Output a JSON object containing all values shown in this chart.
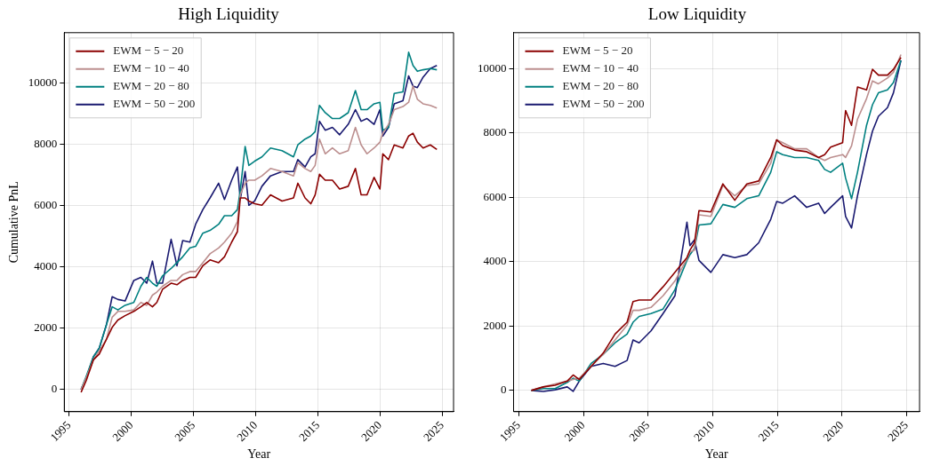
{
  "chart_data": [
    {
      "type": "line",
      "title": "High Liquidity",
      "xlabel": "Year",
      "ylabel": "Cumulative PnL",
      "x": [
        1995.95,
        1996.37,
        1996.94,
        1997.41,
        1997.99,
        1998.45,
        1998.91,
        1999.49,
        2000.19,
        2000.76,
        2001.23,
        2001.69,
        2002.04,
        2002.5,
        2003.19,
        2003.66,
        2004.12,
        2004.7,
        2005.16,
        2005.74,
        2006.32,
        2007.01,
        2007.48,
        2008.06,
        2008.52,
        2008.75,
        2009.14,
        2009.44,
        2009.91,
        2010.49,
        2011.18,
        2012.11,
        2013.03,
        2013.38,
        2013.96,
        2014.42,
        2014.77,
        2015.12,
        2015.58,
        2016.16,
        2016.74,
        2017.43,
        2018.01,
        2018.47,
        2018.94,
        2019.51,
        2019.98,
        2020.21,
        2020.67,
        2021.13,
        2021.83,
        2022.29,
        2022.64,
        2022.99,
        2023.45,
        2024.03,
        2024.56
      ],
      "series": [
        {
          "name": "EWM − 5 − 20",
          "color": "#8b0000",
          "values": [
            -90,
            300,
            970,
            1160,
            1640,
            2030,
            2270,
            2410,
            2550,
            2700,
            2840,
            2700,
            2840,
            3270,
            3470,
            3420,
            3560,
            3660,
            3660,
            4040,
            4230,
            4140,
            4330,
            4810,
            5150,
            6250,
            6250,
            6150,
            6060,
            6010,
            6350,
            6150,
            6250,
            6730,
            6250,
            6060,
            6350,
            7020,
            6830,
            6830,
            6540,
            6630,
            7210,
            6350,
            6350,
            6920,
            6540,
            7690,
            7500,
            7980,
            7880,
            8270,
            8360,
            8070,
            7880,
            7980,
            7830
          ]
        },
        {
          "name": "EWM − 10 − 40",
          "color": "#bc8f8f",
          "values": [
            0,
            390,
            970,
            1260,
            1640,
            2360,
            2550,
            2550,
            2600,
            2840,
            2750,
            3080,
            3180,
            3370,
            3560,
            3560,
            3750,
            3850,
            3850,
            4140,
            4430,
            4620,
            4810,
            5100,
            5480,
            6350,
            6730,
            6830,
            6830,
            6970,
            7210,
            7110,
            6970,
            7400,
            7210,
            7110,
            7310,
            8170,
            7690,
            7880,
            7690,
            7790,
            8550,
            7980,
            7690,
            7880,
            8070,
            8360,
            8650,
            9130,
            9230,
            9370,
            9900,
            9470,
            9320,
            9270,
            9180
          ]
        },
        {
          "name": "EWM − 20 − 80",
          "color": "#008080",
          "values": [
            0,
            440,
            1070,
            1350,
            2120,
            2700,
            2600,
            2750,
            2840,
            3370,
            3660,
            3470,
            3370,
            3710,
            3950,
            4140,
            4330,
            4620,
            4670,
            5100,
            5190,
            5390,
            5670,
            5670,
            5870,
            6490,
            7930,
            7310,
            7450,
            7590,
            7880,
            7790,
            7590,
            7980,
            8170,
            8270,
            8410,
            9270,
            9030,
            8840,
            8840,
            9030,
            9750,
            9130,
            9130,
            9320,
            9370,
            8460,
            8550,
            9660,
            9710,
            11000,
            10570,
            10380,
            10430,
            10470,
            10430
          ]
        },
        {
          "name": "EWM − 50 − 200",
          "color": "#191970",
          "values": [
            0,
            390,
            1070,
            1350,
            2120,
            3030,
            2940,
            2890,
            3560,
            3660,
            3470,
            4190,
            3470,
            3470,
            4900,
            4040,
            4860,
            4810,
            5390,
            5870,
            6250,
            6730,
            6200,
            6830,
            7260,
            6200,
            7110,
            6010,
            6150,
            6630,
            6970,
            7110,
            7110,
            7500,
            7260,
            7590,
            7690,
            8750,
            8460,
            8550,
            8310,
            8650,
            9130,
            8750,
            8840,
            8650,
            9130,
            8270,
            8550,
            9320,
            9420,
            10230,
            9900,
            9850,
            10190,
            10470,
            10570
          ]
        }
      ],
      "xlim": [
        1994.6,
        2025.9
      ],
      "xticks": [
        1995,
        2000,
        2005,
        2010,
        2015,
        2020,
        2025
      ],
      "ylim": [
        -720,
        11640
      ],
      "yticks": [
        0,
        2000,
        4000,
        6000,
        8000,
        10000
      ],
      "grid": true,
      "legend": "top left"
    },
    {
      "type": "line",
      "title": "Low Liquidity",
      "xlabel": "Year",
      "x": [
        1995.97,
        1996.9,
        1997.82,
        1998.75,
        1999.21,
        1999.68,
        2000.6,
        2001.53,
        2002.45,
        2003.38,
        2003.84,
        2004.31,
        2005.23,
        2006.16,
        2007.08,
        2008.01,
        2008.24,
        2008.59,
        2008.94,
        2009.86,
        2010.79,
        2011.71,
        2012.64,
        2013.56,
        2014.49,
        2014.95,
        2015.42,
        2016.34,
        2017.27,
        2018.19,
        2018.66,
        2019.12,
        2020.05,
        2020.28,
        2020.74,
        2021.2,
        2021.9,
        2022.36,
        2022.82,
        2023.52,
        2023.98,
        2024.56
      ],
      "series": [
        {
          "name": "EWM − 5 − 20",
          "color": "#8b0000",
          "values": [
            0,
            110,
            160,
            290,
            480,
            340,
            750,
            1160,
            1750,
            2120,
            2760,
            2810,
            2810,
            3220,
            3670,
            4130,
            4360,
            4590,
            5590,
            5550,
            6420,
            5910,
            6420,
            6510,
            7240,
            7790,
            7610,
            7470,
            7420,
            7240,
            7330,
            7560,
            7700,
            8700,
            8240,
            9430,
            9340,
            9980,
            9800,
            9800,
            9980,
            10350
          ]
        },
        {
          "name": "EWM − 10 − 40",
          "color": "#bc8f8f",
          "values": [
            0,
            110,
            200,
            290,
            340,
            380,
            750,
            1120,
            1570,
            2030,
            2490,
            2490,
            2580,
            2940,
            3400,
            4090,
            4310,
            4360,
            5460,
            5410,
            6370,
            6050,
            6370,
            6420,
            7060,
            7790,
            7700,
            7510,
            7510,
            7240,
            7150,
            7240,
            7330,
            7240,
            7600,
            8430,
            9070,
            9620,
            9530,
            9710,
            9890,
            10440
          ]
        },
        {
          "name": "EWM − 20 − 80",
          "color": "#008080",
          "values": [
            0,
            60,
            60,
            250,
            380,
            290,
            840,
            1120,
            1480,
            1750,
            2120,
            2300,
            2390,
            2530,
            3130,
            4040,
            4220,
            4410,
            5140,
            5180,
            5780,
            5690,
            5960,
            6050,
            6780,
            7420,
            7330,
            7240,
            7240,
            7150,
            6870,
            6780,
            7060,
            6600,
            5960,
            6780,
            8240,
            8880,
            9250,
            9340,
            9570,
            10260
          ]
        },
        {
          "name": "EWM − 50 − 200",
          "color": "#191970",
          "values": [
            0,
            -30,
            20,
            110,
            -30,
            290,
            750,
            840,
            750,
            930,
            1570,
            1480,
            1850,
            2390,
            2940,
            5230,
            4500,
            4680,
            4040,
            3670,
            4220,
            4130,
            4220,
            4590,
            5320,
            5870,
            5820,
            6050,
            5690,
            5820,
            5500,
            5690,
            6050,
            5410,
            5050,
            6050,
            7330,
            8060,
            8520,
            8790,
            9250,
            10260
          ]
        }
      ],
      "xlim": [
        1994.6,
        2026.0
      ],
      "xticks": [
        1995,
        2000,
        2005,
        2010,
        2015,
        2020,
        2025
      ],
      "ylim": [
        -660,
        11120
      ],
      "yticks": [
        0,
        2000,
        4000,
        6000,
        8000,
        10000
      ],
      "grid": true,
      "legend": "top left"
    }
  ]
}
